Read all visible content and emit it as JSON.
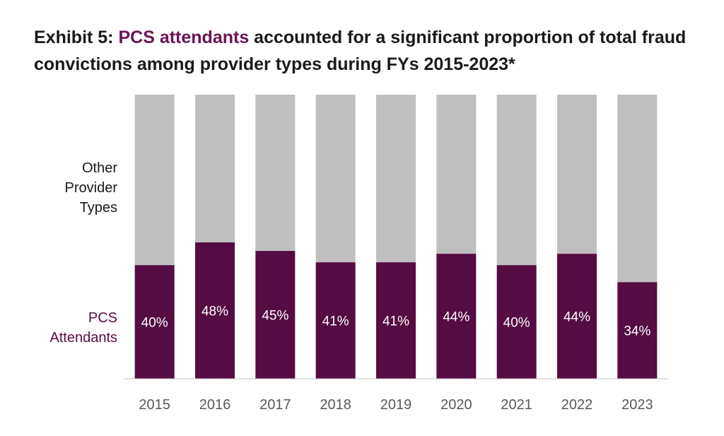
{
  "title": {
    "prefix": "Exhibit 5: ",
    "highlight": "PCS attendants",
    "suffix": " accounted for a significant proportion of total fraud convictions among provider types during FYs 2015-2023*"
  },
  "colors": {
    "pcs": "#550c42",
    "other": "#bfbfbf",
    "highlight": "#6b1453",
    "axis": "#bfbfbf",
    "bar_label": "#ffffff",
    "tick_label": "#595959"
  },
  "chart_data": {
    "type": "bar",
    "stacked": true,
    "percent_stacked": true,
    "categories": [
      "2015",
      "2016",
      "2017",
      "2018",
      "2019",
      "2020",
      "2021",
      "2022",
      "2023"
    ],
    "series": [
      {
        "name": "PCS Attendants",
        "values": [
          40,
          48,
          45,
          41,
          41,
          44,
          40,
          44,
          34
        ],
        "labels": [
          "40%",
          "48%",
          "45%",
          "41%",
          "41%",
          "44%",
          "40%",
          "44%",
          "34%"
        ]
      },
      {
        "name": "Other Provider Types",
        "values": [
          60,
          52,
          55,
          59,
          59,
          56,
          60,
          56,
          66
        ]
      }
    ],
    "ylim": [
      0,
      100
    ],
    "grid": false,
    "legend": "left"
  }
}
